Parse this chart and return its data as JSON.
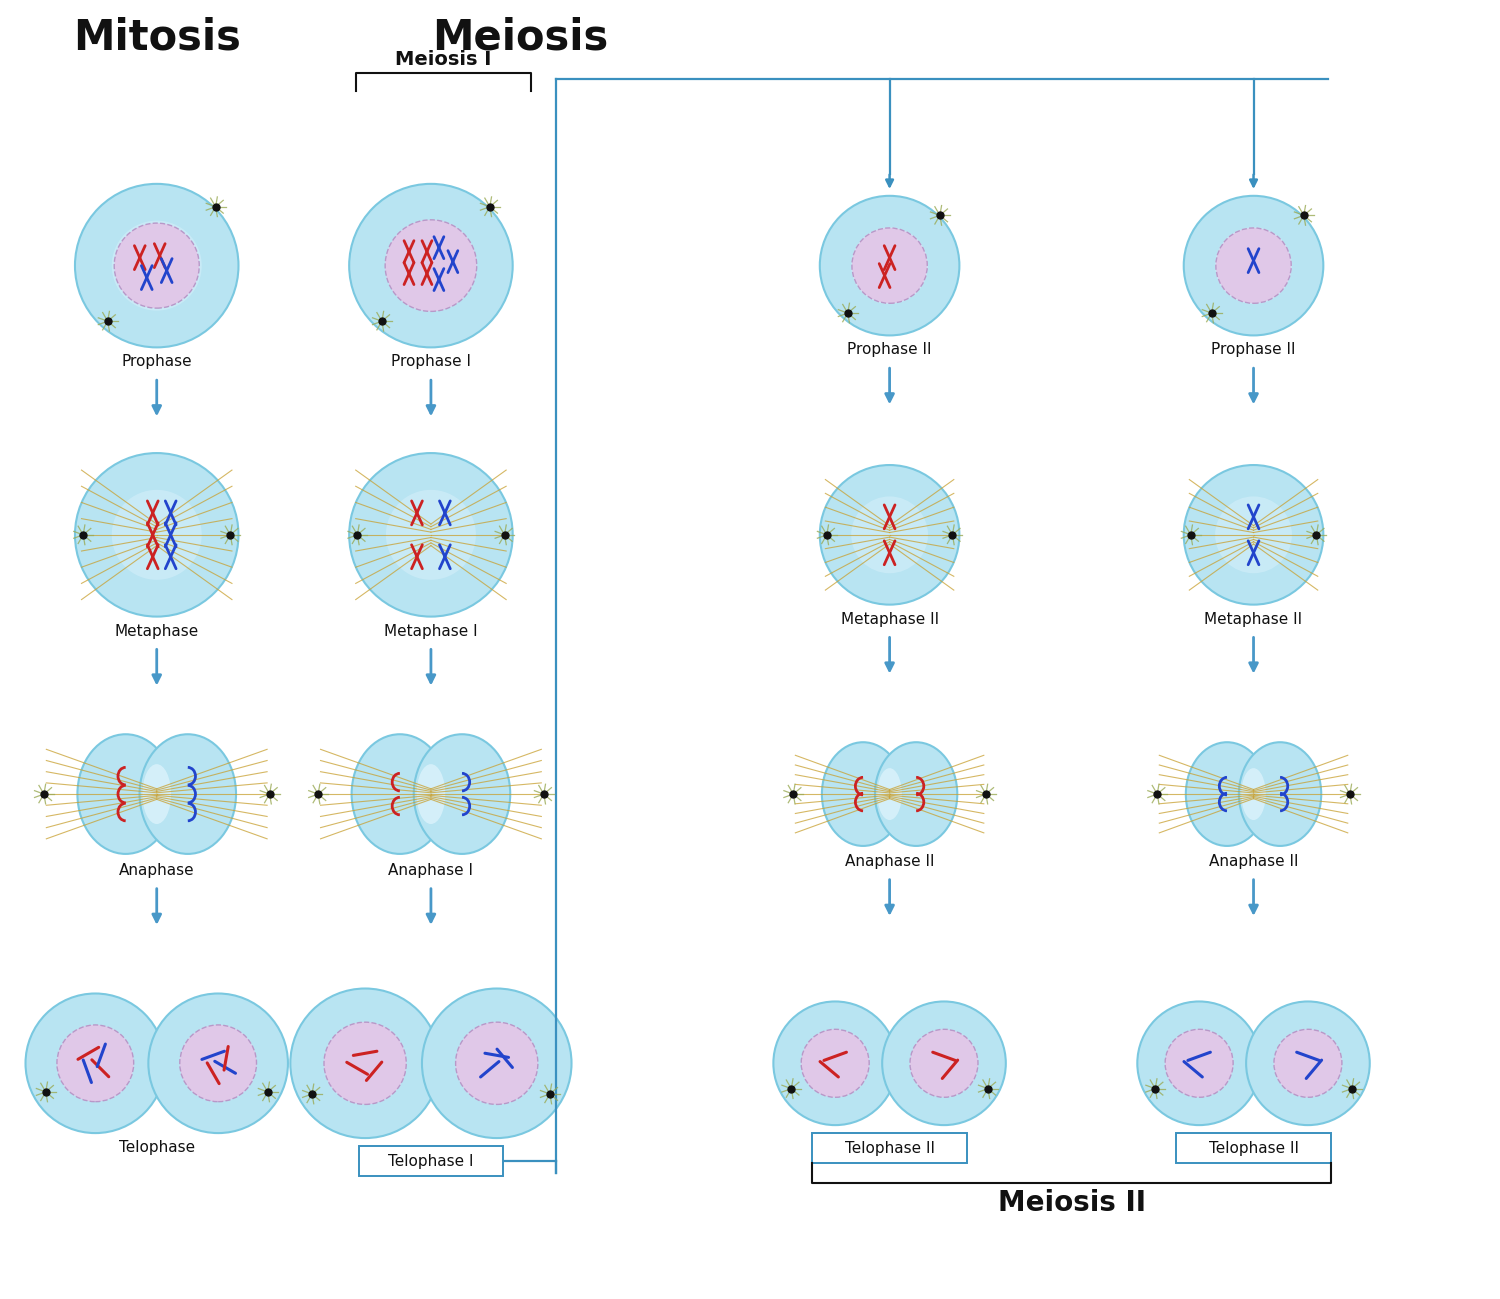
{
  "title_mitosis": "Mitosis",
  "title_meiosis": "Meiosis",
  "title_meiosis1": "Meiosis I",
  "title_meiosis2": "Meiosis II",
  "bg_color": "#ffffff",
  "cell_color": "#b8e4f2",
  "cell_edge": "#7ac8e0",
  "nucleus_color": "#e0c8e8",
  "nucleus_edge": "#b898c8",
  "spindle_color": "#c8a030",
  "arrow_color": "#4898c8",
  "line_color": "#3a90bf",
  "chr_red": "#cc2222",
  "chr_blue": "#2244cc",
  "centriole_color": "#111111",
  "label_fontsize": 11,
  "title_fontsize": 30,
  "meiosis2_fontsize": 20
}
